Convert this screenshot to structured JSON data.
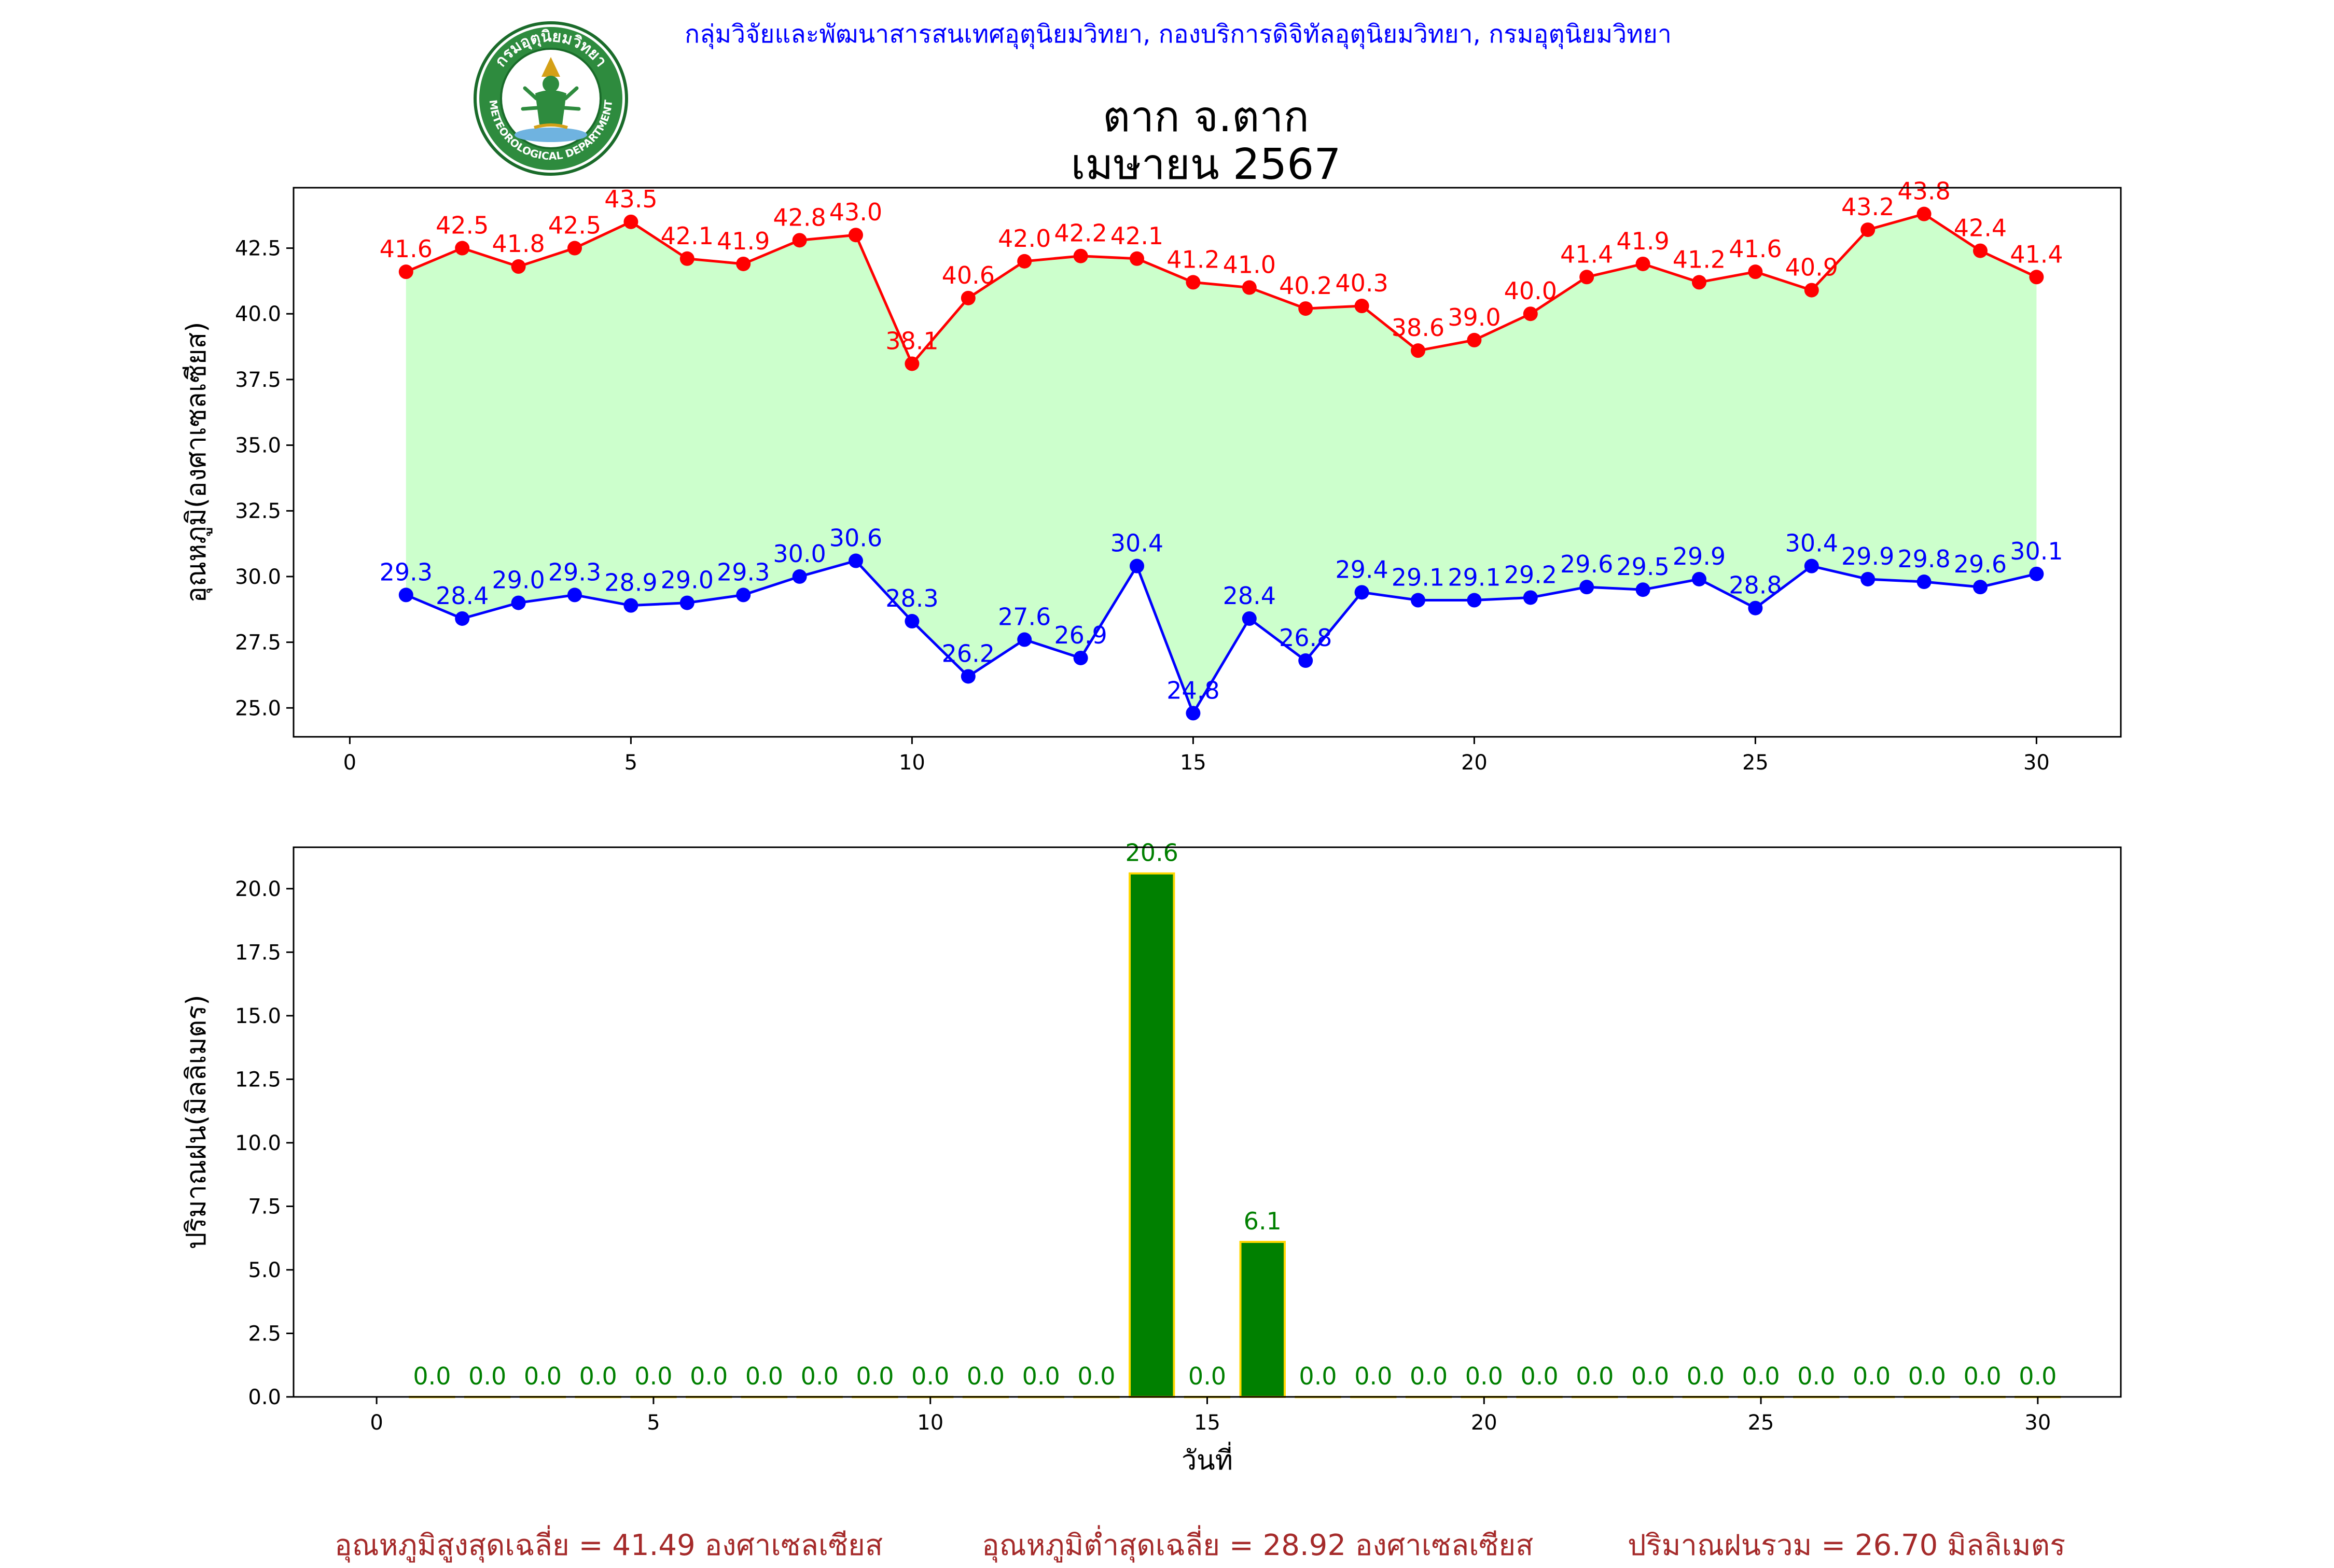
{
  "header": {
    "credit": "กลุ่มวิจัยและพัฒนาสารสนเทศอุตุนิยมวิทยา, กองบริการดิจิทัลอุตุนิยมวิทยา, กรมอุตุนิยมวิทยา",
    "logo_text_top": "กรมอุตุนิยมวิทยา",
    "logo_text_bottom": "METEOROLOGICAL DEPARTMENT",
    "title_line1": "ตาก จ.ตาก",
    "title_line2": "เมษายน 2567"
  },
  "colors": {
    "max_temp": "#ff0000",
    "min_temp": "#0000ff",
    "fill": "#ccffcc",
    "rain_bar": "#008000",
    "rain_edge": "#ffd700",
    "summary": "#a52a2a",
    "credit": "#0000ff"
  },
  "chart_data": [
    {
      "type": "line",
      "ylabel": "อุณหภูมิ(องศาเซลเซียส)",
      "xlim": [
        -1,
        31.5
      ],
      "ylim": [
        23.9,
        44.8
      ],
      "x_ticks": [
        0,
        5,
        10,
        15,
        20,
        25,
        30
      ],
      "y_ticks": [
        25.0,
        27.5,
        30.0,
        32.5,
        35.0,
        37.5,
        40.0,
        42.5
      ],
      "fill_between": true,
      "x": [
        1,
        2,
        3,
        4,
        5,
        6,
        7,
        8,
        9,
        10,
        11,
        12,
        13,
        14,
        15,
        16,
        17,
        18,
        19,
        20,
        21,
        22,
        23,
        24,
        25,
        26,
        27,
        28,
        29,
        30
      ],
      "series": [
        {
          "key": "max",
          "values": [
            41.6,
            42.5,
            41.8,
            42.5,
            43.5,
            42.1,
            41.9,
            42.8,
            43.0,
            38.1,
            40.6,
            42.0,
            42.2,
            42.1,
            41.2,
            41.0,
            40.2,
            40.3,
            38.6,
            39.0,
            40.0,
            41.4,
            41.9,
            41.2,
            41.6,
            40.9,
            43.2,
            43.8,
            42.4,
            41.4
          ]
        },
        {
          "key": "min",
          "values": [
            29.3,
            28.4,
            29.0,
            29.3,
            28.9,
            29.0,
            29.3,
            30.0,
            30.6,
            28.3,
            26.2,
            27.6,
            26.9,
            30.4,
            24.8,
            28.4,
            26.8,
            29.4,
            29.1,
            29.1,
            29.2,
            29.6,
            29.5,
            29.9,
            28.8,
            30.4,
            29.9,
            29.8,
            29.6,
            30.1
          ]
        }
      ],
      "grid": false
    },
    {
      "type": "bar",
      "ylabel": "ปริมาณฝน(มิลลิเมตร)",
      "xlabel": "วันที่",
      "xlim": [
        -1.5,
        31.5
      ],
      "ylim": [
        0,
        21.63
      ],
      "x_ticks": [
        0,
        5,
        10,
        15,
        20,
        25,
        30
      ],
      "y_ticks": [
        0.0,
        2.5,
        5.0,
        7.5,
        10.0,
        12.5,
        15.0,
        17.5,
        20.0
      ],
      "x": [
        1,
        2,
        3,
        4,
        5,
        6,
        7,
        8,
        9,
        10,
        11,
        12,
        13,
        14,
        15,
        16,
        17,
        18,
        19,
        20,
        21,
        22,
        23,
        24,
        25,
        26,
        27,
        28,
        29,
        30
      ],
      "values": [
        0.0,
        0.0,
        0.0,
        0.0,
        0.0,
        0.0,
        0.0,
        0.0,
        0.0,
        0.0,
        0.0,
        0.0,
        0.0,
        20.6,
        0.0,
        6.1,
        0.0,
        0.0,
        0.0,
        0.0,
        0.0,
        0.0,
        0.0,
        0.0,
        0.0,
        0.0,
        0.0,
        0.0,
        0.0,
        0.0
      ],
      "grid": false
    }
  ],
  "summary": {
    "max_avg": "อุณหภูมิสูงสุดเฉลี่ย = 41.49 องศาเซลเซียส",
    "min_avg": "อุณหภูมิต่ำสุดเฉลี่ย = 28.92 องศาเซลเซียส",
    "rain_total": "ปริมาณฝนรวม = 26.70 มิลลิเมตร"
  }
}
